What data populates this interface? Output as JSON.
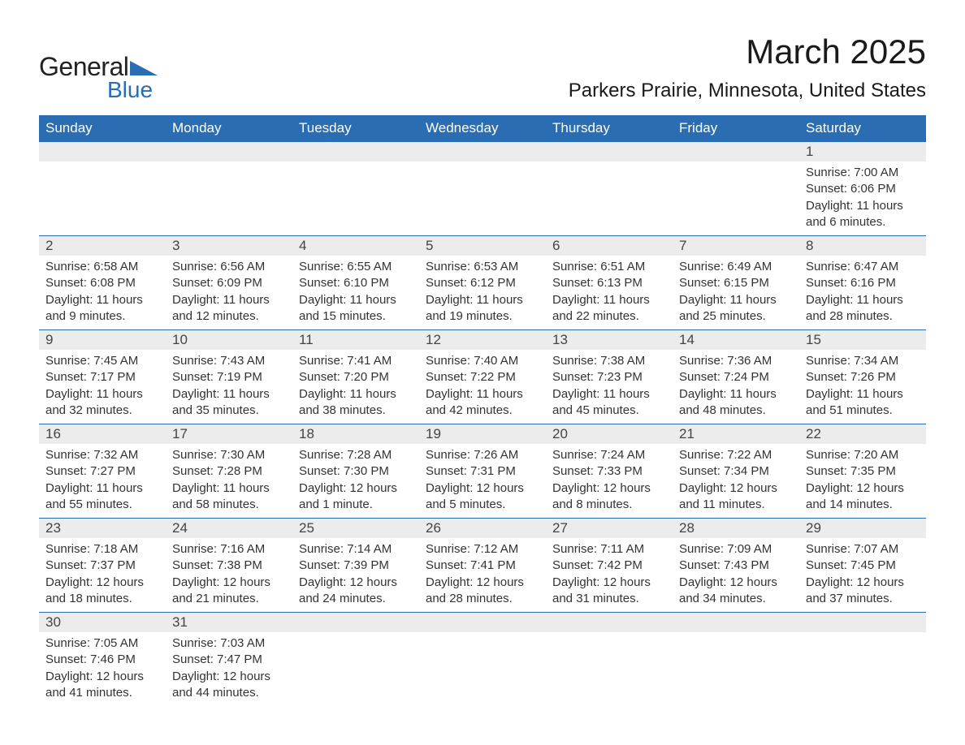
{
  "brand": {
    "line1": "General",
    "line2": "Blue",
    "accent_color": "#2a6db2"
  },
  "title": "March 2025",
  "location": "Parkers Prairie, Minnesota, United States",
  "colors": {
    "header_bg": "#2a6db2",
    "header_text": "#ffffff",
    "daynum_bg": "#ececec",
    "text": "#333333",
    "row_border": "#2a6db2"
  },
  "font": {
    "title_size": 42,
    "location_size": 24,
    "header_size": 17,
    "body_size": 15
  },
  "day_headers": [
    "Sunday",
    "Monday",
    "Tuesday",
    "Wednesday",
    "Thursday",
    "Friday",
    "Saturday"
  ],
  "weeks": [
    [
      null,
      null,
      null,
      null,
      null,
      null,
      {
        "n": "1",
        "sunrise": "7:00 AM",
        "sunset": "6:06 PM",
        "daylight": "11 hours and 6 minutes."
      }
    ],
    [
      {
        "n": "2",
        "sunrise": "6:58 AM",
        "sunset": "6:08 PM",
        "daylight": "11 hours and 9 minutes."
      },
      {
        "n": "3",
        "sunrise": "6:56 AM",
        "sunset": "6:09 PM",
        "daylight": "11 hours and 12 minutes."
      },
      {
        "n": "4",
        "sunrise": "6:55 AM",
        "sunset": "6:10 PM",
        "daylight": "11 hours and 15 minutes."
      },
      {
        "n": "5",
        "sunrise": "6:53 AM",
        "sunset": "6:12 PM",
        "daylight": "11 hours and 19 minutes."
      },
      {
        "n": "6",
        "sunrise": "6:51 AM",
        "sunset": "6:13 PM",
        "daylight": "11 hours and 22 minutes."
      },
      {
        "n": "7",
        "sunrise": "6:49 AM",
        "sunset": "6:15 PM",
        "daylight": "11 hours and 25 minutes."
      },
      {
        "n": "8",
        "sunrise": "6:47 AM",
        "sunset": "6:16 PM",
        "daylight": "11 hours and 28 minutes."
      }
    ],
    [
      {
        "n": "9",
        "sunrise": "7:45 AM",
        "sunset": "7:17 PM",
        "daylight": "11 hours and 32 minutes."
      },
      {
        "n": "10",
        "sunrise": "7:43 AM",
        "sunset": "7:19 PM",
        "daylight": "11 hours and 35 minutes."
      },
      {
        "n": "11",
        "sunrise": "7:41 AM",
        "sunset": "7:20 PM",
        "daylight": "11 hours and 38 minutes."
      },
      {
        "n": "12",
        "sunrise": "7:40 AM",
        "sunset": "7:22 PM",
        "daylight": "11 hours and 42 minutes."
      },
      {
        "n": "13",
        "sunrise": "7:38 AM",
        "sunset": "7:23 PM",
        "daylight": "11 hours and 45 minutes."
      },
      {
        "n": "14",
        "sunrise": "7:36 AM",
        "sunset": "7:24 PM",
        "daylight": "11 hours and 48 minutes."
      },
      {
        "n": "15",
        "sunrise": "7:34 AM",
        "sunset": "7:26 PM",
        "daylight": "11 hours and 51 minutes."
      }
    ],
    [
      {
        "n": "16",
        "sunrise": "7:32 AM",
        "sunset": "7:27 PM",
        "daylight": "11 hours and 55 minutes."
      },
      {
        "n": "17",
        "sunrise": "7:30 AM",
        "sunset": "7:28 PM",
        "daylight": "11 hours and 58 minutes."
      },
      {
        "n": "18",
        "sunrise": "7:28 AM",
        "sunset": "7:30 PM",
        "daylight": "12 hours and 1 minute."
      },
      {
        "n": "19",
        "sunrise": "7:26 AM",
        "sunset": "7:31 PM",
        "daylight": "12 hours and 5 minutes."
      },
      {
        "n": "20",
        "sunrise": "7:24 AM",
        "sunset": "7:33 PM",
        "daylight": "12 hours and 8 minutes."
      },
      {
        "n": "21",
        "sunrise": "7:22 AM",
        "sunset": "7:34 PM",
        "daylight": "12 hours and 11 minutes."
      },
      {
        "n": "22",
        "sunrise": "7:20 AM",
        "sunset": "7:35 PM",
        "daylight": "12 hours and 14 minutes."
      }
    ],
    [
      {
        "n": "23",
        "sunrise": "7:18 AM",
        "sunset": "7:37 PM",
        "daylight": "12 hours and 18 minutes."
      },
      {
        "n": "24",
        "sunrise": "7:16 AM",
        "sunset": "7:38 PM",
        "daylight": "12 hours and 21 minutes."
      },
      {
        "n": "25",
        "sunrise": "7:14 AM",
        "sunset": "7:39 PM",
        "daylight": "12 hours and 24 minutes."
      },
      {
        "n": "26",
        "sunrise": "7:12 AM",
        "sunset": "7:41 PM",
        "daylight": "12 hours and 28 minutes."
      },
      {
        "n": "27",
        "sunrise": "7:11 AM",
        "sunset": "7:42 PM",
        "daylight": "12 hours and 31 minutes."
      },
      {
        "n": "28",
        "sunrise": "7:09 AM",
        "sunset": "7:43 PM",
        "daylight": "12 hours and 34 minutes."
      },
      {
        "n": "29",
        "sunrise": "7:07 AM",
        "sunset": "7:45 PM",
        "daylight": "12 hours and 37 minutes."
      }
    ],
    [
      {
        "n": "30",
        "sunrise": "7:05 AM",
        "sunset": "7:46 PM",
        "daylight": "12 hours and 41 minutes."
      },
      {
        "n": "31",
        "sunrise": "7:03 AM",
        "sunset": "7:47 PM",
        "daylight": "12 hours and 44 minutes."
      },
      null,
      null,
      null,
      null,
      null
    ]
  ],
  "labels": {
    "sunrise_prefix": "Sunrise: ",
    "sunset_prefix": "Sunset: ",
    "daylight_prefix": "Daylight: "
  }
}
